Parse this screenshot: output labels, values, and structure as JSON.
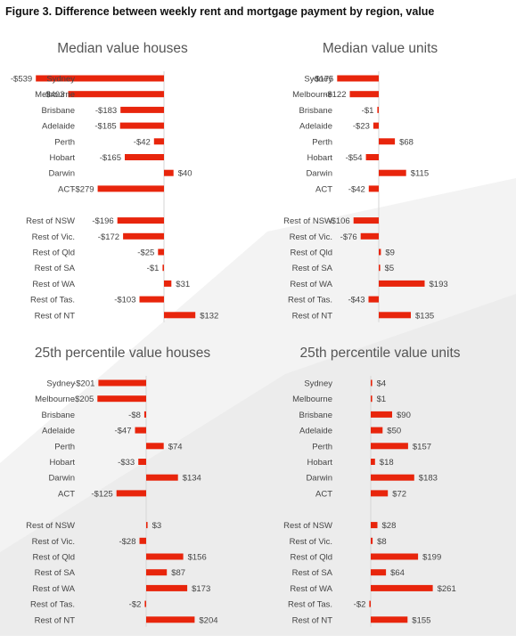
{
  "figure_title": "Figure 3. Difference between weekly rent and mortgage payment by region, value",
  "colors": {
    "bar": "#e8250c",
    "text": "#444444",
    "axis": "#d6d6d6"
  },
  "chart_data": [
    {
      "type": "bar",
      "orientation": "horizontal",
      "title": "Median value houses",
      "categories": [
        "Sydney",
        "Melbourne",
        "Brisbane",
        "Adelaide",
        "Perth",
        "Hobart",
        "Darwin",
        "ACT",
        "Rest of NSW",
        "Rest of Vic.",
        "Rest of Qld",
        "Rest of SA",
        "Rest of WA",
        "Rest of Tas.",
        "Rest of NT"
      ],
      "values": [
        -539,
        -403,
        -183,
        -185,
        -42,
        -165,
        40,
        -279,
        -196,
        -172,
        -25,
        -1,
        31,
        -103,
        132
      ],
      "value_labels": [
        "-$539",
        "-$403",
        "-$183",
        "-$185",
        "-$42",
        "-$165",
        "$40",
        "-$279",
        "-$196",
        "-$172",
        "-$25",
        "-$1",
        "$31",
        "-$103",
        "$132"
      ],
      "grid": false
    },
    {
      "type": "bar",
      "orientation": "horizontal",
      "title": "Median value units",
      "categories": [
        "Sydney",
        "Melbourne",
        "Brisbane",
        "Adelaide",
        "Perth",
        "Hobart",
        "Darwin",
        "ACT",
        "Rest of NSW",
        "Rest of Vic.",
        "Rest of Qld",
        "Rest of SA",
        "Rest of WA",
        "Rest of Tas.",
        "Rest of NT"
      ],
      "values": [
        -175,
        -122,
        -1,
        -23,
        68,
        -54,
        115,
        -42,
        -106,
        -76,
        9,
        5,
        193,
        -43,
        135
      ],
      "value_labels": [
        "-$175",
        "-$122",
        "-$1",
        "-$23",
        "$68",
        "-$54",
        "$115",
        "-$42",
        "-$106",
        "-$76",
        "$9",
        "$5",
        "$193",
        "-$43",
        "$135"
      ],
      "grid": false
    },
    {
      "type": "bar",
      "orientation": "horizontal",
      "title": "25th percentile value houses",
      "categories": [
        "Sydney",
        "Melbourne",
        "Brisbane",
        "Adelaide",
        "Perth",
        "Hobart",
        "Darwin",
        "ACT",
        "Rest of NSW",
        "Rest of Vic.",
        "Rest of Qld",
        "Rest of SA",
        "Rest of WA",
        "Rest of Tas.",
        "Rest of NT"
      ],
      "values": [
        -201,
        -205,
        -8,
        -47,
        74,
        -33,
        134,
        -125,
        3,
        -28,
        156,
        87,
        173,
        -2,
        204
      ],
      "value_labels": [
        "-$201",
        "-$205",
        "-$8",
        "-$47",
        "$74",
        "-$33",
        "$134",
        "-$125",
        "$3",
        "-$28",
        "$156",
        "$87",
        "$173",
        "-$2",
        "$204"
      ],
      "grid": false
    },
    {
      "type": "bar",
      "orientation": "horizontal",
      "title": "25th percentile value units",
      "categories": [
        "Sydney",
        "Melbourne",
        "Brisbane",
        "Adelaide",
        "Perth",
        "Hobart",
        "Darwin",
        "ACT",
        "Rest of NSW",
        "Rest of Vic.",
        "Rest of Qld",
        "Rest of SA",
        "Rest of WA",
        "Rest of Tas.",
        "Rest of NT"
      ],
      "values": [
        4,
        1,
        90,
        50,
        157,
        18,
        183,
        72,
        28,
        8,
        199,
        64,
        261,
        -2,
        155
      ],
      "value_labels": [
        "$4",
        "$1",
        "$90",
        "$50",
        "$157",
        "$18",
        "$183",
        "$72",
        "$28",
        "$8",
        "$199",
        "$64",
        "$261",
        "-$2",
        "$155"
      ],
      "grid": false
    }
  ]
}
